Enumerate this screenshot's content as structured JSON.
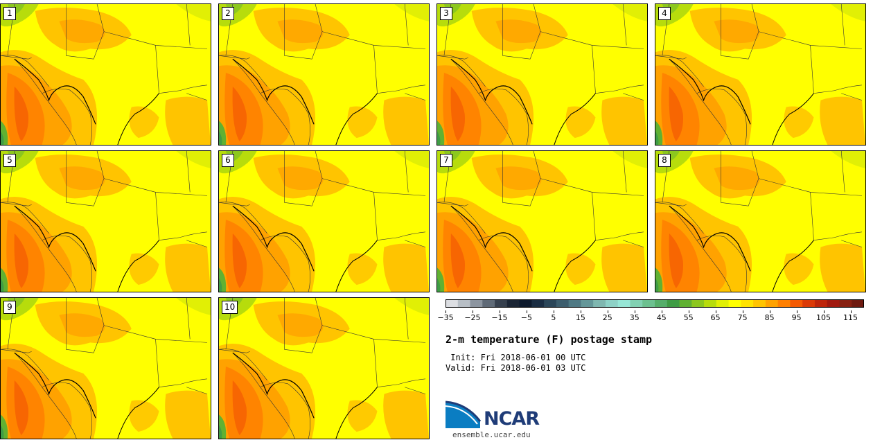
{
  "panels": [
    {
      "label": "1"
    },
    {
      "label": "2"
    },
    {
      "label": "3"
    },
    {
      "label": "4"
    },
    {
      "label": "5"
    },
    {
      "label": "6"
    },
    {
      "label": "7"
    },
    {
      "label": "8"
    },
    {
      "label": "9"
    },
    {
      "label": "10"
    }
  ],
  "colorbar": {
    "colors": [
      "#dcdee2",
      "#b7bec5",
      "#8c95a0",
      "#5f6a77",
      "#36404e",
      "#1b2535",
      "#0d1a2d",
      "#1a2d43",
      "#2b4659",
      "#3d5e6e",
      "#4f7984",
      "#649799",
      "#7fb7b0",
      "#8dd1c6",
      "#97e6d6",
      "#82d1b2",
      "#6cc08f",
      "#55ae6a",
      "#3f9c45",
      "#60b132",
      "#8cc71e",
      "#b7dc0c",
      "#e1ef05",
      "#ffff00",
      "#ffe300",
      "#ffc400",
      "#ffa200",
      "#ff7f00",
      "#f45a03",
      "#db3a07",
      "#be250b",
      "#a1190f",
      "#872011",
      "#6e1a10"
    ],
    "tick_labels": [
      "−35",
      "−25",
      "−15",
      "−5",
      "5",
      "15",
      "25",
      "35",
      "45",
      "55",
      "65",
      "75",
      "85",
      "95",
      "105",
      "115"
    ],
    "range": [
      -35,
      120
    ],
    "tick_values": [
      -35,
      -25,
      -15,
      -5,
      5,
      15,
      25,
      35,
      45,
      55,
      65,
      75,
      85,
      95,
      105,
      115
    ]
  },
  "title": "2-m temperature (F) postage stamp",
  "init": " Init: Fri 2018-06-01 00 UTC",
  "valid": "Valid: Fri 2018-06-01 03 UTC",
  "logo": {
    "text": "NCAR",
    "url": "ensemble.ucar.edu",
    "color": "#1f3c78",
    "accent": "#0a7dc2"
  }
}
